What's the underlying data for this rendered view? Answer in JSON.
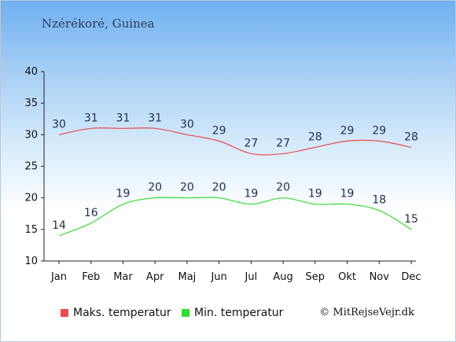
{
  "location": "Nzérékoré, Guinea",
  "copyright": "© MitRejseVejr.dk",
  "chart_data": {
    "type": "line",
    "categories": [
      "Jan",
      "Feb",
      "Mar",
      "Apr",
      "Maj",
      "Jun",
      "Jul",
      "Aug",
      "Sep",
      "Okt",
      "Nov",
      "Dec"
    ],
    "ylim": [
      10,
      40
    ],
    "yticks": [
      10,
      15,
      20,
      25,
      30,
      35,
      40
    ],
    "grid": false,
    "legend_position": "bottom",
    "series": [
      {
        "name": "Maks. temperatur",
        "color": "#e84c4c",
        "values": [
          30,
          31,
          31,
          31,
          30,
          29,
          27,
          27,
          28,
          29,
          29,
          28
        ]
      },
      {
        "name": "Min. temperatur",
        "color": "#33dd33",
        "values": [
          14,
          16,
          19,
          20,
          20,
          20,
          19,
          20,
          19,
          19,
          18,
          15
        ]
      }
    ]
  }
}
